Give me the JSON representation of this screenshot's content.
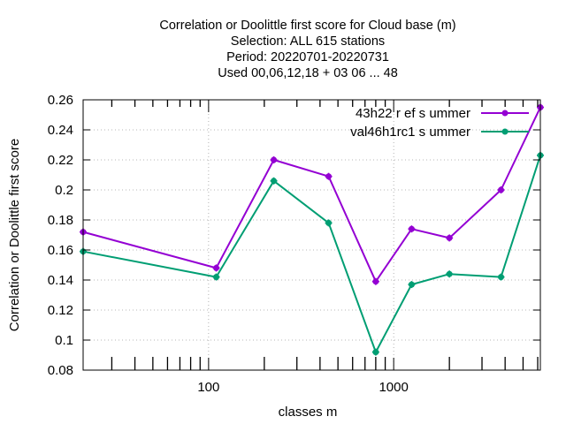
{
  "chart_data": {
    "type": "line",
    "title_lines": [
      "Correlation or Doolittle first score  for Cloud base (m)",
      "Selection: ALL    615 stations",
      "Period: 20220701-20220731",
      "Used  00,06,12,18  + 03 06 ... 48"
    ],
    "xlabel": "classes m",
    "ylabel": "Correlation or Doolittle first score",
    "x_scale": "log",
    "xlim": [
      21,
      6200
    ],
    "ylim": [
      0.08,
      0.26
    ],
    "x_ticks": [
      100,
      1000
    ],
    "x_tick_labels": [
      "100",
      "1000"
    ],
    "y_ticks": [
      0.08,
      0.1,
      0.12,
      0.14,
      0.16,
      0.18,
      0.2,
      0.22,
      0.24,
      0.26
    ],
    "y_tick_labels": [
      "0.08",
      "0.1",
      "0.12",
      "0.14",
      "0.16",
      "0.18",
      "0.2",
      "0.22",
      "0.24",
      "0.26"
    ],
    "grid": true,
    "legend_position": "top-right",
    "series": [
      {
        "name": "43h22 r ef s ummer",
        "color": "#9400d3",
        "x": [
          21,
          110,
          225,
          445,
          800,
          1250,
          2000,
          3800,
          6200
        ],
        "y": [
          0.172,
          0.148,
          0.22,
          0.209,
          0.139,
          0.174,
          0.168,
          0.2,
          0.255
        ]
      },
      {
        "name": "val46h1rc1 s ummer",
        "color": "#009e73",
        "x": [
          21,
          110,
          225,
          445,
          800,
          1250,
          2000,
          3800,
          6200
        ],
        "y": [
          0.159,
          0.142,
          0.206,
          0.178,
          0.092,
          0.137,
          0.144,
          0.142,
          0.223
        ]
      }
    ]
  }
}
